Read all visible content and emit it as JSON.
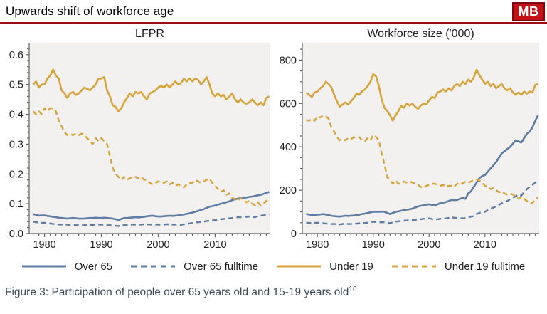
{
  "header": {
    "title": "Upwards shift of workforce age",
    "logo": "MB"
  },
  "colors": {
    "accent_red": "#9e0d12",
    "logo_red": "#c1121a",
    "series_blue": "#5e7da4",
    "series_orange": "#d8a33a",
    "plot_background": "#f2f1ef",
    "axis_gray": "#606060",
    "caption_text": "#3e4a5a"
  },
  "legend": {
    "items": [
      {
        "label": "Over 65",
        "color": "#5e7da4",
        "dash": "solid"
      },
      {
        "label": "Over 65 fulltime",
        "color": "#5e7da4",
        "dash": "dashed"
      },
      {
        "label": "Under 19",
        "color": "#d8a33a",
        "dash": "solid"
      },
      {
        "label": "Under 19 fulltime",
        "color": "#d8a33a",
        "dash": "dashed"
      }
    ]
  },
  "caption": {
    "text": "Figure 3: Participation of people over 65 years old and 15-19 years old",
    "superscript": "10"
  },
  "chart_data": [
    {
      "type": "line",
      "title": "LFPR",
      "xlim": [
        1977.3,
        2019.7
      ],
      "ylim": [
        0,
        0.64
      ],
      "x_ticks": [
        1980,
        1990,
        2000,
        2010
      ],
      "y_ticks": [
        0,
        0.1,
        0.2,
        0.3,
        0.4,
        0.5,
        0.6
      ],
      "y_tick_labels": [
        "0.0",
        "0.1",
        "0.2",
        "0.3",
        "0.4",
        "0.5",
        "0.6"
      ],
      "y_minor_step": 0.02,
      "grid": false,
      "series": [
        {
          "name": "Over 65",
          "color": "#5e7da4",
          "dash": "solid",
          "start": 1978,
          "step": 0.5,
          "values": [
            0.065,
            0.063,
            0.06,
            0.061,
            0.061,
            0.059,
            0.058,
            0.056,
            0.055,
            0.053,
            0.052,
            0.051,
            0.05,
            0.051,
            0.052,
            0.051,
            0.05,
            0.05,
            0.05,
            0.051,
            0.052,
            0.052,
            0.053,
            0.052,
            0.052,
            0.053,
            0.052,
            0.051,
            0.05,
            0.048,
            0.045,
            0.049,
            0.052,
            0.052,
            0.053,
            0.054,
            0.055,
            0.054,
            0.055,
            0.056,
            0.058,
            0.059,
            0.06,
            0.058,
            0.057,
            0.057,
            0.058,
            0.059,
            0.06,
            0.059,
            0.06,
            0.061,
            0.063,
            0.064,
            0.066,
            0.068,
            0.07,
            0.073,
            0.076,
            0.079,
            0.082,
            0.086,
            0.09,
            0.092,
            0.094,
            0.097,
            0.1,
            0.102,
            0.105,
            0.108,
            0.112,
            0.115,
            0.117,
            0.119,
            0.12,
            0.121,
            0.123,
            0.124,
            0.126,
            0.128,
            0.13,
            0.133,
            0.136,
            0.14
          ]
        },
        {
          "name": "Over 65 fulltime",
          "color": "#5e7da4",
          "dash": "dashed",
          "start": 1978,
          "step": 0.5,
          "values": [
            0.04,
            0.038,
            0.037,
            0.036,
            0.036,
            0.035,
            0.034,
            0.032,
            0.031,
            0.03,
            0.03,
            0.03,
            0.03,
            0.029,
            0.029,
            0.028,
            0.028,
            0.028,
            0.028,
            0.029,
            0.029,
            0.029,
            0.029,
            0.03,
            0.03,
            0.029,
            0.028,
            0.028,
            0.027,
            0.026,
            0.025,
            0.027,
            0.028,
            0.029,
            0.029,
            0.03,
            0.03,
            0.03,
            0.03,
            0.031,
            0.031,
            0.03,
            0.03,
            0.03,
            0.03,
            0.03,
            0.03,
            0.031,
            0.031,
            0.03,
            0.03,
            0.029,
            0.029,
            0.031,
            0.032,
            0.034,
            0.035,
            0.037,
            0.038,
            0.039,
            0.04,
            0.042,
            0.043,
            0.044,
            0.045,
            0.047,
            0.048,
            0.049,
            0.05,
            0.051,
            0.052,
            0.054,
            0.055,
            0.055,
            0.055,
            0.056,
            0.057,
            0.056,
            0.055,
            0.058,
            0.06,
            0.061,
            0.063,
            0.065
          ]
        },
        {
          "name": "Under 19",
          "color": "#d8a33a",
          "dash": "solid",
          "start": 1978,
          "step": 0.5,
          "values": [
            0.5,
            0.51,
            0.49,
            0.5,
            0.5,
            0.52,
            0.53,
            0.55,
            0.53,
            0.52,
            0.48,
            0.47,
            0.455,
            0.47,
            0.475,
            0.465,
            0.47,
            0.48,
            0.49,
            0.485,
            0.48,
            0.49,
            0.5,
            0.52,
            0.52,
            0.525,
            0.48,
            0.46,
            0.43,
            0.425,
            0.41,
            0.42,
            0.44,
            0.455,
            0.47,
            0.46,
            0.475,
            0.47,
            0.475,
            0.46,
            0.45,
            0.47,
            0.475,
            0.48,
            0.49,
            0.495,
            0.49,
            0.5,
            0.49,
            0.5,
            0.51,
            0.5,
            0.505,
            0.52,
            0.51,
            0.52,
            0.51,
            0.52,
            0.515,
            0.5,
            0.51,
            0.525,
            0.5,
            0.47,
            0.46,
            0.47,
            0.46,
            0.465,
            0.45,
            0.46,
            0.47,
            0.45,
            0.44,
            0.45,
            0.44,
            0.435,
            0.44,
            0.45,
            0.44,
            0.43,
            0.44,
            0.43,
            0.455,
            0.46
          ]
        },
        {
          "name": "Under 19 fulltime",
          "color": "#d8a33a",
          "dash": "dashed",
          "start": 1978,
          "step": 0.5,
          "values": [
            0.41,
            0.4,
            0.41,
            0.4,
            0.42,
            0.41,
            0.42,
            0.42,
            0.41,
            0.38,
            0.36,
            0.34,
            0.33,
            0.335,
            0.33,
            0.335,
            0.33,
            0.335,
            0.33,
            0.32,
            0.31,
            0.3,
            0.32,
            0.31,
            0.32,
            0.31,
            0.3,
            0.26,
            0.22,
            0.2,
            0.19,
            0.18,
            0.19,
            0.18,
            0.185,
            0.19,
            0.19,
            0.185,
            0.19,
            0.18,
            0.18,
            0.17,
            0.165,
            0.17,
            0.175,
            0.17,
            0.17,
            0.175,
            0.165,
            0.17,
            0.16,
            0.165,
            0.16,
            0.155,
            0.165,
            0.17,
            0.17,
            0.18,
            0.175,
            0.17,
            0.175,
            0.18,
            0.185,
            0.17,
            0.16,
            0.15,
            0.14,
            0.145,
            0.13,
            0.135,
            0.12,
            0.115,
            0.11,
            0.12,
            0.11,
            0.105,
            0.11,
            0.1,
            0.095,
            0.105,
            0.095,
            0.1,
            0.11,
            0.11
          ]
        }
      ]
    },
    {
      "type": "line",
      "title": "Workforce size ('000)",
      "xlim": [
        1977.3,
        2019.7
      ],
      "ylim": [
        0,
        880
      ],
      "x_ticks": [
        1980,
        1990,
        2000,
        2010
      ],
      "y_ticks": [
        0,
        200,
        400,
        600,
        800
      ],
      "y_tick_labels": [
        "0",
        "200",
        "400",
        "600",
        "800"
      ],
      "y_minor_step": 50,
      "grid": false,
      "series": [
        {
          "name": "Over 65",
          "color": "#5e7da4",
          "dash": "solid",
          "start": 1978,
          "step": 0.5,
          "values": [
            90,
            88,
            85,
            86,
            87,
            88,
            90,
            88,
            85,
            82,
            80,
            79,
            78,
            80,
            82,
            81,
            82,
            83,
            85,
            87,
            90,
            92,
            95,
            98,
            100,
            100,
            100,
            101,
            100,
            95,
            90,
            95,
            100,
            102,
            105,
            108,
            110,
            112,
            115,
            120,
            125,
            128,
            130,
            133,
            135,
            132,
            130,
            135,
            140,
            142,
            145,
            150,
            155,
            154,
            155,
            160,
            165,
            160,
            185,
            195,
            215,
            235,
            255,
            265,
            270,
            285,
            300,
            315,
            330,
            350,
            370,
            380,
            390,
            400,
            415,
            430,
            425,
            420,
            440,
            460,
            470,
            490,
            520,
            545
          ]
        },
        {
          "name": "Over 65 fulltime",
          "color": "#5e7da4",
          "dash": "dashed",
          "start": 1978,
          "step": 0.5,
          "values": [
            50,
            49,
            48,
            49,
            50,
            49,
            48,
            46,
            45,
            44,
            44,
            43,
            42,
            44,
            45,
            44,
            44,
            45,
            46,
            47,
            48,
            49,
            50,
            52,
            55,
            53,
            52,
            52,
            52,
            50,
            48,
            52,
            55,
            56,
            58,
            59,
            60,
            61,
            62,
            63,
            65,
            66,
            68,
            69,
            70,
            67,
            65,
            66,
            68,
            69,
            70,
            72,
            75,
            73,
            72,
            71,
            70,
            72,
            75,
            78,
            80,
            90,
            95,
            100,
            100,
            108,
            115,
            120,
            125,
            132,
            140,
            145,
            150,
            158,
            165,
            172,
            180,
            175,
            190,
            205,
            215,
            225,
            235,
            245
          ]
        },
        {
          "name": "Under 19",
          "color": "#d8a33a",
          "dash": "solid",
          "start": 1978,
          "step": 0.5,
          "values": [
            650,
            640,
            630,
            650,
            655,
            670,
            680,
            700,
            690,
            675,
            640,
            610,
            585,
            595,
            605,
            595,
            610,
            625,
            645,
            640,
            655,
            665,
            680,
            700,
            735,
            725,
            680,
            620,
            580,
            565,
            545,
            520,
            545,
            565,
            590,
            580,
            600,
            590,
            600,
            585,
            575,
            590,
            600,
            595,
            615,
            630,
            625,
            650,
            655,
            665,
            655,
            670,
            660,
            680,
            690,
            680,
            700,
            690,
            710,
            700,
            720,
            755,
            730,
            710,
            690,
            700,
            680,
            690,
            670,
            680,
            690,
            670,
            660,
            670,
            650,
            640,
            650,
            640,
            655,
            645,
            655,
            650,
            685,
            690
          ]
        },
        {
          "name": "Under 19 fulltime",
          "color": "#d8a33a",
          "dash": "dashed",
          "start": 1978,
          "step": 0.5,
          "values": [
            525,
            520,
            530,
            520,
            540,
            535,
            545,
            540,
            530,
            490,
            470,
            445,
            430,
            435,
            430,
            440,
            435,
            445,
            440,
            445,
            430,
            425,
            440,
            430,
            455,
            445,
            430,
            370,
            320,
            260,
            245,
            230,
            245,
            230,
            230,
            240,
            235,
            240,
            235,
            230,
            225,
            215,
            210,
            220,
            225,
            230,
            230,
            225,
            220,
            225,
            215,
            220,
            220,
            215,
            230,
            235,
            230,
            240,
            235,
            240,
            245,
            250,
            245,
            235,
            220,
            215,
            205,
            210,
            200,
            190,
            195,
            185,
            180,
            185,
            180,
            170,
            160,
            170,
            160,
            150,
            145,
            140,
            160,
            165
          ]
        }
      ]
    }
  ]
}
